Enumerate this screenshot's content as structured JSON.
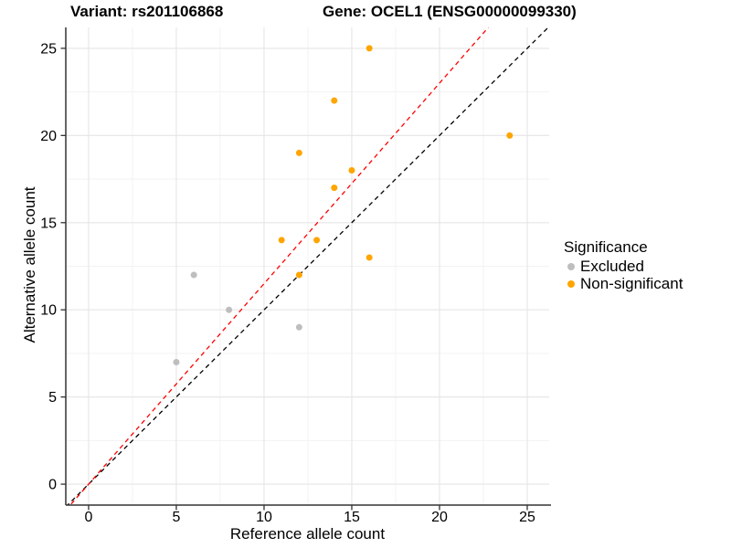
{
  "chart_data": {
    "type": "scatter",
    "title": {
      "variant": "Variant: rs201106868",
      "gene": "Gene: OCEL1 (ENSG00000099330)"
    },
    "xlabel": "Reference allele count",
    "ylabel": "Alternative allele count",
    "xlim": [
      -1.3,
      26.25
    ],
    "ylim": [
      -1.2,
      26.2
    ],
    "x_ticks": [
      0,
      5,
      10,
      15,
      20,
      25
    ],
    "y_ticks": [
      0,
      5,
      10,
      15,
      20,
      25
    ],
    "x_minor_ticks": [
      2.5,
      7.5,
      12.5,
      17.5,
      22.5
    ],
    "y_minor_ticks": [
      2.5,
      7.5,
      12.5,
      17.5,
      22.5
    ],
    "grid": true,
    "series": [
      {
        "name": "Excluded",
        "color": "#BEBEBE",
        "points": [
          [
            5,
            7
          ],
          [
            6,
            12
          ],
          [
            8,
            10
          ],
          [
            12,
            9
          ]
        ]
      },
      {
        "name": "Non-significant",
        "color": "#FFA500",
        "points": [
          [
            11,
            14
          ],
          [
            12,
            12
          ],
          [
            12,
            19
          ],
          [
            13,
            14
          ],
          [
            14,
            17
          ],
          [
            14,
            22
          ],
          [
            15,
            18
          ],
          [
            16,
            13
          ],
          [
            16,
            25
          ],
          [
            24,
            20
          ]
        ]
      }
    ],
    "lines": [
      {
        "name": "identity-line",
        "color": "#000000",
        "slope": 1.0,
        "intercept": 0,
        "style": "dashed"
      },
      {
        "name": "fit-line",
        "color": "#FF0000",
        "slope": 1.15,
        "intercept": 0,
        "style": "dashed"
      }
    ],
    "legend": {
      "title": "Significance",
      "position": "right",
      "entries": [
        "Excluded",
        "Non-significant"
      ]
    },
    "style_colors": {
      "major_grid": "#e5e5e5",
      "minor_grid": "#f2f2f2",
      "axis": "#333333",
      "tick_text": "#000000"
    }
  }
}
